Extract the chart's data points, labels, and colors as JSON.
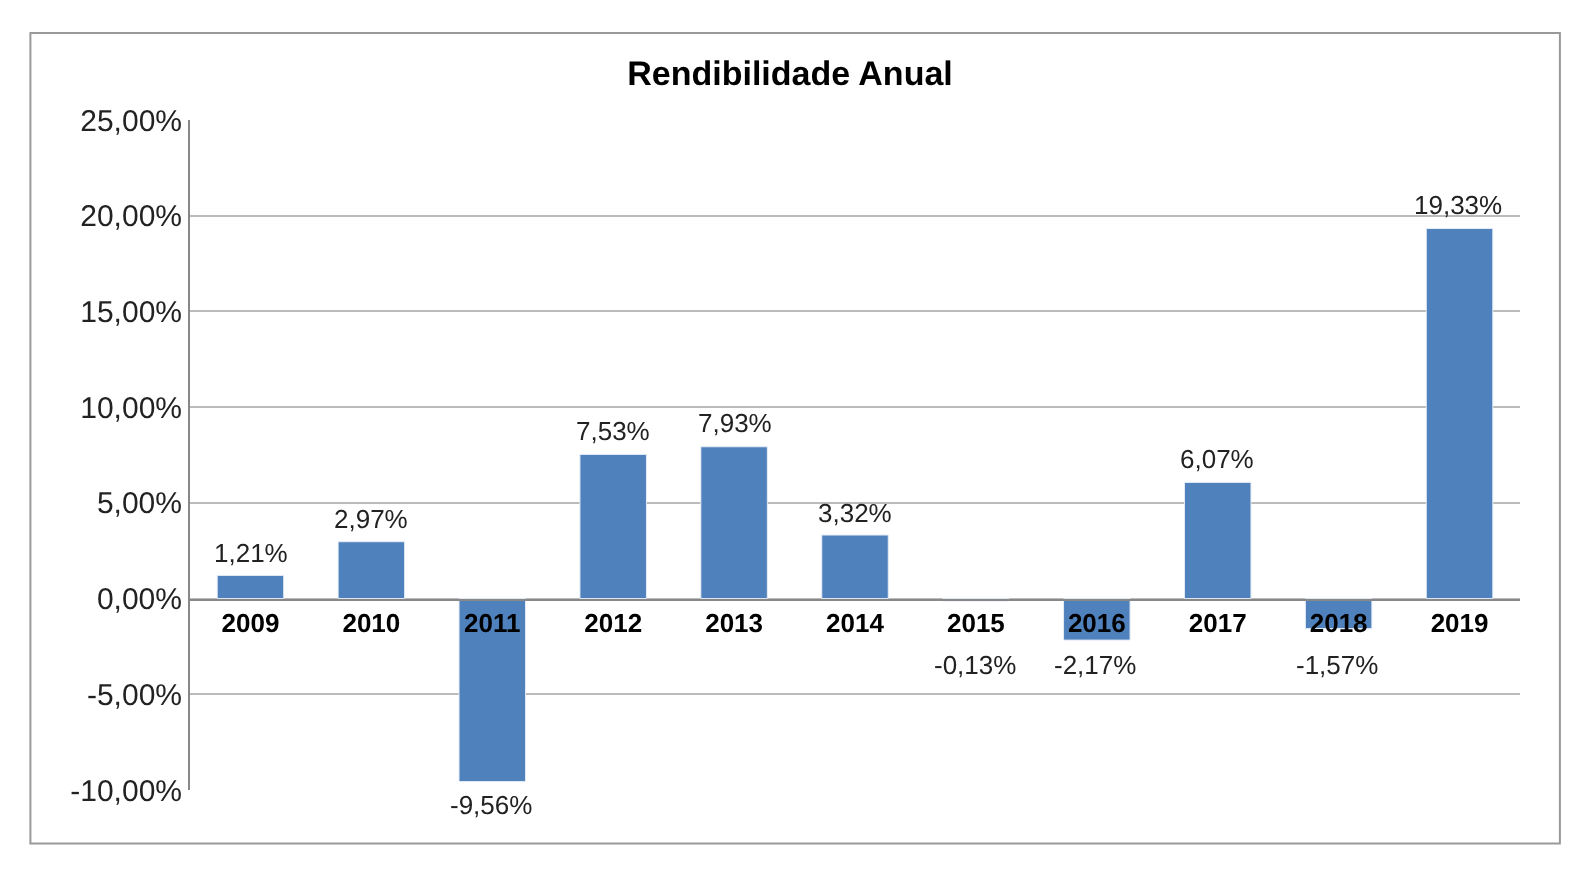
{
  "chart_data": {
    "type": "bar",
    "title": "Rendibilidade Anual",
    "categories": [
      "2009",
      "2010",
      "2011",
      "2012",
      "2013",
      "2014",
      "2015",
      "2016",
      "2017",
      "2018",
      "2019"
    ],
    "values": [
      1.21,
      2.97,
      -9.56,
      7.53,
      7.93,
      3.32,
      -0.13,
      -2.17,
      6.07,
      -1.57,
      19.33
    ],
    "value_labels": [
      "1,21%",
      "2,97%",
      "-9,56%",
      "7,53%",
      "7,93%",
      "3,32%",
      "-0,13%",
      "-2,17%",
      "6,07%",
      "-1,57%",
      "19,33%"
    ],
    "color": "#4f81bd",
    "ylim": [
      -10,
      25
    ],
    "yticks": [
      {
        "value": -10,
        "label": "-10,00%"
      },
      {
        "value": -5,
        "label": "-5,00%"
      },
      {
        "value": 0,
        "label": "0,00%"
      },
      {
        "value": 5,
        "label": "5,00%"
      },
      {
        "value": 10,
        "label": "10,00%"
      },
      {
        "value": 15,
        "label": "15,00%"
      },
      {
        "value": 20,
        "label": "20,00%"
      },
      {
        "value": 25,
        "label": "25,00%"
      }
    ],
    "grid": "y",
    "legend": false
  }
}
